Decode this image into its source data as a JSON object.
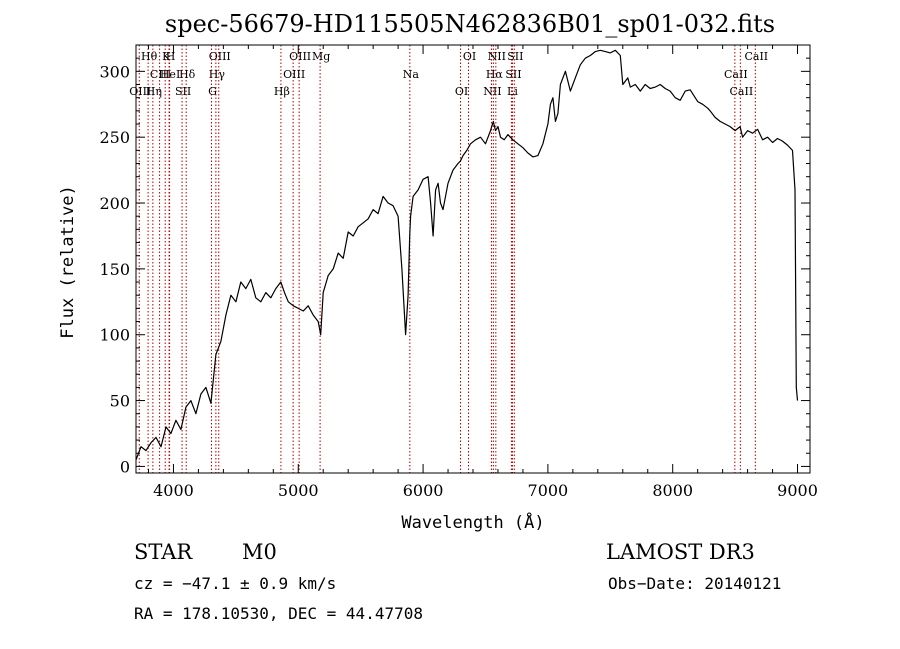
{
  "chart_data": {
    "type": "line",
    "title": "spec-56679-HD115505N462836B01_sp01-032.fits",
    "xlabel": "Wavelength (Å)",
    "ylabel": "Flux (relative)",
    "xlim": [
      3700,
      9100
    ],
    "ylim": [
      -5,
      320
    ],
    "x_ticks": [
      4000,
      5000,
      6000,
      7000,
      8000,
      9000
    ],
    "y_ticks": [
      0,
      50,
      100,
      150,
      200,
      250,
      300
    ],
    "grid": false,
    "series": [
      {
        "name": "spectrum",
        "x": [
          3700,
          3740,
          3780,
          3820,
          3860,
          3900,
          3940,
          3980,
          4020,
          4060,
          4100,
          4140,
          4180,
          4220,
          4260,
          4300,
          4340,
          4380,
          4420,
          4460,
          4500,
          4540,
          4580,
          4620,
          4660,
          4700,
          4740,
          4780,
          4820,
          4860,
          4890,
          4920,
          4960,
          5000,
          5040,
          5080,
          5120,
          5160,
          5180,
          5200,
          5240,
          5280,
          5320,
          5360,
          5400,
          5440,
          5480,
          5520,
          5560,
          5600,
          5640,
          5680,
          5720,
          5760,
          5800,
          5830,
          5860,
          5880,
          5893,
          5900,
          5920,
          5960,
          6000,
          6040,
          6060,
          6080,
          6100,
          6120,
          6140,
          6160,
          6200,
          6240,
          6280,
          6300,
          6320,
          6350,
          6380,
          6420,
          6460,
          6500,
          6540,
          6563,
          6580,
          6600,
          6620,
          6650,
          6680,
          6720,
          6760,
          6800,
          6840,
          6880,
          6920,
          6960,
          7000,
          7020,
          7040,
          7060,
          7080,
          7100,
          7140,
          7180,
          7220,
          7260,
          7300,
          7340,
          7380,
          7420,
          7460,
          7500,
          7540,
          7580,
          7600,
          7640,
          7660,
          7700,
          7740,
          7780,
          7820,
          7860,
          7900,
          7940,
          7980,
          8020,
          8060,
          8100,
          8140,
          8180,
          8200,
          8240,
          8280,
          8300,
          8340,
          8380,
          8420,
          8460,
          8500,
          8540,
          8560,
          8600,
          8640,
          8680,
          8720,
          8760,
          8800,
          8840,
          8880,
          8920,
          8960,
          8980,
          8990,
          9000
        ],
        "values": [
          5,
          15,
          12,
          18,
          22,
          15,
          30,
          25,
          35,
          28,
          45,
          50,
          40,
          55,
          60,
          48,
          85,
          95,
          115,
          130,
          125,
          140,
          135,
          142,
          128,
          125,
          132,
          128,
          135,
          140,
          132,
          125,
          122,
          120,
          118,
          122,
          115,
          110,
          100,
          132,
          145,
          150,
          162,
          158,
          178,
          175,
          182,
          185,
          188,
          195,
          192,
          205,
          200,
          198,
          190,
          150,
          100,
          130,
          175,
          190,
          205,
          210,
          218,
          220,
          200,
          175,
          210,
          215,
          200,
          195,
          215,
          225,
          230,
          232,
          236,
          240,
          245,
          248,
          250,
          245,
          255,
          262,
          255,
          258,
          250,
          248,
          252,
          248,
          245,
          242,
          238,
          235,
          236,
          245,
          260,
          275,
          280,
          262,
          268,
          290,
          300,
          285,
          295,
          305,
          310,
          312,
          315,
          316,
          315,
          314,
          316,
          312,
          290,
          295,
          288,
          290,
          285,
          290,
          287,
          288,
          290,
          287,
          285,
          280,
          278,
          285,
          286,
          280,
          277,
          275,
          272,
          270,
          265,
          262,
          260,
          258,
          255,
          258,
          250,
          255,
          253,
          256,
          248,
          250,
          246,
          249,
          247,
          244,
          240,
          210,
          60,
          50
        ]
      }
    ],
    "line_markers": [
      {
        "label": "Hθ",
        "wave": 3797
      },
      {
        "label": "CIII",
        "wave": 3889
      },
      {
        "label": "OIII",
        "wave": 3726
      },
      {
        "label": "K",
        "wave": 3934
      },
      {
        "label": "HeI",
        "wave": 3965
      },
      {
        "label": "Hη",
        "wave": 3835
      },
      {
        "label": "H",
        "wave": 3969
      },
      {
        "label": "Hδ",
        "wave": 4102
      },
      {
        "label": "SII",
        "wave": 4069
      },
      {
        "label": "OIII",
        "wave": 4363
      },
      {
        "label": "Hγ",
        "wave": 4340
      },
      {
        "label": "G",
        "wave": 4305
      },
      {
        "label": "OIII",
        "wave": 5007
      },
      {
        "label": "OIII",
        "wave": 4959
      },
      {
        "label": "Hβ",
        "wave": 4861
      },
      {
        "label": "Mg",
        "wave": 5175
      },
      {
        "label": "Na",
        "wave": 5894
      },
      {
        "label": "OI",
        "wave": 6300
      },
      {
        "label": "OI",
        "wave": 6364
      },
      {
        "label": "Hα",
        "wave": 6563
      },
      {
        "label": "NII",
        "wave": 6548
      },
      {
        "label": "NII",
        "wave": 6583
      },
      {
        "label": "SII",
        "wave": 6716
      },
      {
        "label": "Li",
        "wave": 6708
      },
      {
        "label": "SII",
        "wave": 6731
      },
      {
        "label": "CaII",
        "wave": 8498
      },
      {
        "label": "CaII",
        "wave": 8542
      },
      {
        "label": "CaII",
        "wave": 8662
      }
    ]
  },
  "info": {
    "object_class": "STAR",
    "subclass": "M0",
    "survey": "LAMOST DR3",
    "redshift": "cz = −47.1 ± 0.9 km/s",
    "obs_date": "Obs−Date: 20140121",
    "coords": "RA = 178.10530, DEC =  44.47708"
  }
}
